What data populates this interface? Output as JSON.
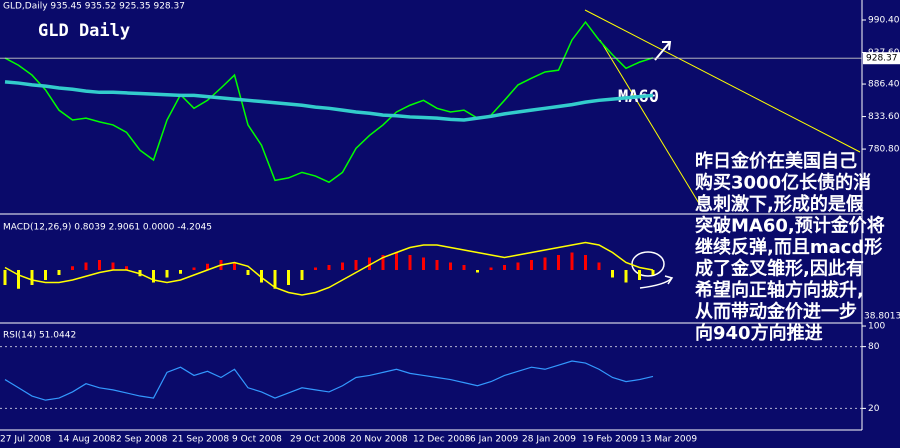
{
  "chart_data": [
    {
      "type": "line",
      "header": "GLD,Daily  935.45 935.52 925.35 928.37",
      "title": "GLD Daily",
      "ylim": [
        677,
        1022.9
      ],
      "yticks": [
        {
          "value": 990.4,
          "label": "990.40"
        },
        {
          "value": 937.6,
          "label": "937.60"
        },
        {
          "value": 886.4,
          "label": "886.40"
        },
        {
          "value": 833.6,
          "label": "833.60"
        },
        {
          "value": 780.8,
          "label": "780.80"
        }
      ],
      "last_price": 928.37,
      "series": [
        {
          "type": "line",
          "color": "#00ff00",
          "width": 1.5,
          "values": [
            928.6,
            917,
            901,
            877,
            844,
            828,
            831,
            825,
            820,
            808,
            779,
            763,
            828,
            869,
            847,
            860,
            880,
            901,
            820,
            787,
            730,
            734,
            743,
            737,
            727,
            743,
            782,
            803,
            820,
            841,
            852,
            860,
            847,
            841,
            844,
            831,
            836,
            860,
            885,
            896,
            906,
            909,
            958,
            987,
            958,
            934,
            912,
            922,
            929
          ]
        },
        {
          "name": "MA60",
          "type": "line",
          "color": "#33cccc",
          "width": 3.5,
          "values": [
            890,
            888,
            885,
            883,
            880,
            878,
            875,
            873,
            873,
            872,
            871,
            870,
            869,
            868,
            868,
            866,
            864,
            862,
            860,
            858,
            856,
            854,
            852,
            849,
            847,
            844,
            841,
            839,
            836,
            835,
            833,
            832,
            831,
            829,
            828,
            831,
            834,
            838,
            841,
            844,
            847,
            850,
            853,
            857,
            860,
            862,
            864,
            866,
            868
          ]
        }
      ],
      "annotation": [
        "昨日金价在美国自己",
        "购买3000亿长债的消",
        "息刺激下,形成的是假",
        "突破MA60,预计金价将",
        "继续反弹,而且macd形",
        "成了金叉雏形,因此有",
        "希望向正轴方向拔升,",
        "从而带动金价进一步",
        "向940方向推进"
      ]
    },
    {
      "type": "bar",
      "header": "MACD(12,26,9) 0.8039 2.9061 0.0000 -4.2045",
      "scale_label": "38.8013",
      "ylim": [
        -40,
        40
      ],
      "series": [
        {
          "type": "bar",
          "color": "#ff0000",
          "negative_color": "#ffff00",
          "values": [
            -12,
            -15,
            -12,
            -8,
            -4,
            3,
            6,
            8,
            6,
            3,
            -5,
            -10,
            -6,
            -3,
            2,
            5,
            8,
            6,
            -4,
            -10,
            -15,
            -12,
            -8,
            2,
            4,
            6,
            8,
            10,
            12,
            14,
            12,
            10,
            8,
            6,
            4,
            -2,
            2,
            4,
            6,
            8,
            10,
            12,
            14,
            12,
            6,
            -6,
            -10,
            -8,
            -4
          ]
        },
        {
          "type": "line",
          "color": "#ffff00",
          "width": 1.5,
          "values": [
            2,
            -4,
            -8,
            -10,
            -10,
            -8,
            -5,
            -2,
            0,
            0,
            -3,
            -8,
            -10,
            -8,
            -4,
            0,
            4,
            6,
            3,
            -6,
            -14,
            -18,
            -20,
            -18,
            -14,
            -8,
            -2,
            4,
            10,
            14,
            18,
            20,
            20,
            18,
            16,
            14,
            12,
            10,
            12,
            14,
            16,
            18,
            20,
            22,
            20,
            14,
            6,
            2,
            0
          ]
        }
      ]
    },
    {
      "type": "line",
      "header": "RSI(14) 51.0442",
      "ylim": [
        -1,
        101
      ],
      "yticks": [
        100,
        80,
        20
      ],
      "grid": [
        80,
        20
      ],
      "series": [
        {
          "type": "line",
          "color": "#3399ff",
          "width": 1.2,
          "values": [
            48,
            40,
            32,
            28,
            30,
            36,
            44,
            40,
            38,
            35,
            32,
            30,
            55,
            60,
            52,
            56,
            50,
            58,
            40,
            36,
            30,
            35,
            40,
            38,
            36,
            42,
            50,
            52,
            55,
            58,
            54,
            52,
            50,
            48,
            45,
            42,
            46,
            52,
            56,
            60,
            58,
            62,
            66,
            64,
            58,
            50,
            46,
            48,
            51
          ]
        }
      ],
      "xtick_labels": [
        "27 Jul 2008",
        "14 Aug 2008",
        "2 Sep 2008",
        "21 Sep 2008",
        "9 Oct 2008",
        "29 Oct 2008",
        "20 Nov 2008",
        "12 Dec 2008",
        "6 Jan 2009",
        "28 Jan 2009",
        "19 Feb 2009",
        "13 Mar 2009"
      ]
    }
  ]
}
